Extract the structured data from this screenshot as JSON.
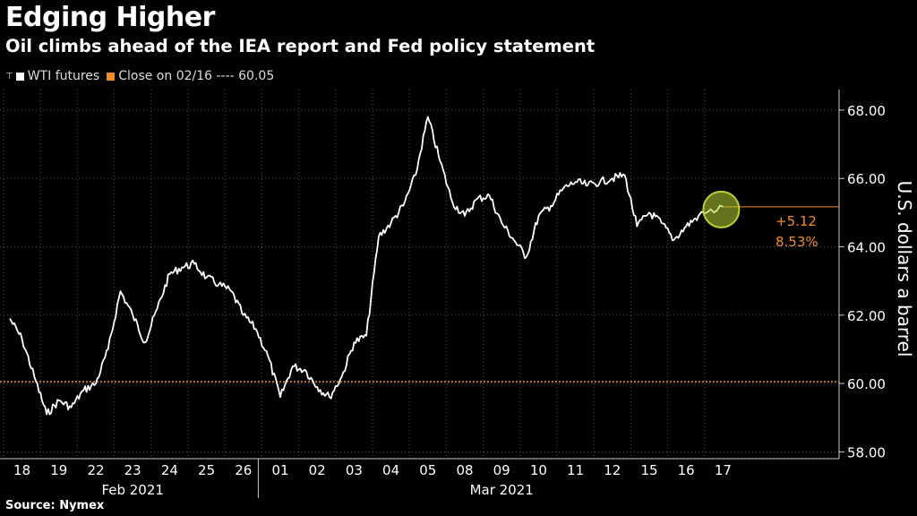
{
  "title": "Edging Higher",
  "subtitle": "Oil climbs ahead of the IEA report and Fed policy statement",
  "legend": {
    "series_label": "WTI futures",
    "reference_label": "Close on 02/16 ---- 60.05"
  },
  "source": "Source: Nymex",
  "annotation": {
    "change": "+5.12",
    "percent": "8.53%"
  },
  "colors": {
    "line": "#ffffff",
    "reference": "#f28c28",
    "highlight": "#b5d334",
    "background": "#000000"
  },
  "chart_data": {
    "type": "line",
    "title": "Edging Higher",
    "subtitle": "Oil climbs ahead of the IEA report and Fed policy statement",
    "ylabel": "U.S. dollars a barrel",
    "ylim": [
      57.8,
      68.6
    ],
    "yticks": [
      58,
      60,
      62,
      64,
      66,
      68
    ],
    "ytick_labels": [
      "58.00",
      "60.00",
      "62.00",
      "64.00",
      "66.00",
      "68.00"
    ],
    "grid": true,
    "x_day_labels": [
      "18",
      "19",
      "22",
      "23",
      "24",
      "25",
      "26",
      "01",
      "02",
      "03",
      "04",
      "05",
      "08",
      "09",
      "10",
      "11",
      "12",
      "15",
      "16",
      "17"
    ],
    "x_month_labels": [
      "Feb 2021",
      "Mar 2021"
    ],
    "reference_line": {
      "label": "Close on 02/16",
      "value": 60.05
    },
    "series": [
      {
        "name": "WTI futures",
        "x": [
          "02/18",
          "02/18",
          "02/18",
          "02/19",
          "02/19",
          "02/19",
          "02/22",
          "02/22",
          "02/22",
          "02/23",
          "02/23",
          "02/23",
          "02/24",
          "02/24",
          "02/24",
          "02/25",
          "02/25",
          "02/25",
          "02/26",
          "02/26",
          "02/26",
          "03/01",
          "03/01",
          "03/01",
          "03/02",
          "03/02",
          "03/02",
          "03/03",
          "03/03",
          "03/03",
          "03/04",
          "03/04",
          "03/04",
          "03/05",
          "03/05",
          "03/05",
          "03/08",
          "03/08",
          "03/08",
          "03/09",
          "03/09",
          "03/09",
          "03/10",
          "03/10",
          "03/10",
          "03/11",
          "03/11",
          "03/11",
          "03/12",
          "03/12",
          "03/12",
          "03/15",
          "03/15",
          "03/15",
          "03/16",
          "03/16",
          "03/16",
          "03/17"
        ],
        "values": [
          61.9,
          61.3,
          60.2,
          59.1,
          59.5,
          59.3,
          59.8,
          60.0,
          61.0,
          62.7,
          62.0,
          61.2,
          62.2,
          63.2,
          63.4,
          63.5,
          63.1,
          62.9,
          62.7,
          62.0,
          61.6,
          60.8,
          59.6,
          60.5,
          60.4,
          59.9,
          59.6,
          60.2,
          61.2,
          61.4,
          64.3,
          64.7,
          65.2,
          66.1,
          67.8,
          66.5,
          65.3,
          64.9,
          65.4,
          65.5,
          64.7,
          64.2,
          63.7,
          64.9,
          65.2,
          65.7,
          65.9,
          65.8,
          65.9,
          66.0,
          66.1,
          64.6,
          65.0,
          64.7,
          64.2,
          64.6,
          64.9,
          65.17
        ]
      }
    ]
  }
}
